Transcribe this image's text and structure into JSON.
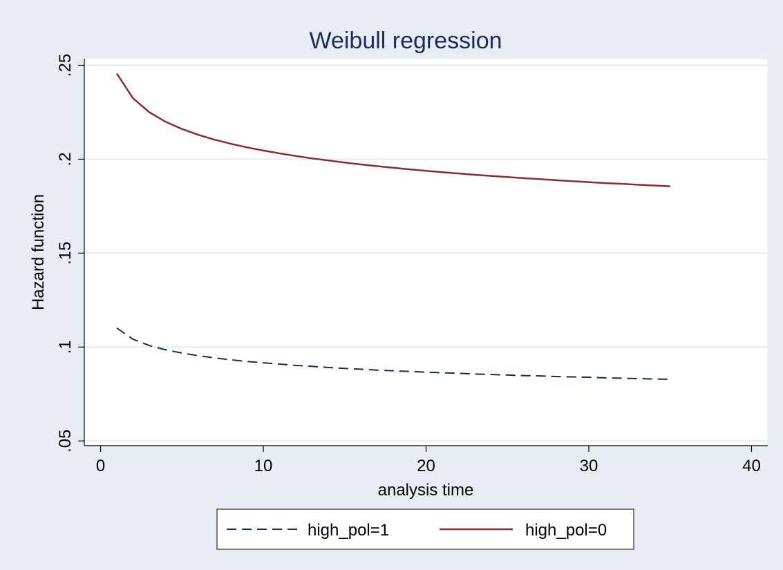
{
  "chart_data": {
    "type": "line",
    "title": "Weibull regression",
    "xlabel": "analysis time",
    "ylabel": "Hazard function",
    "xlim": [
      -1,
      41
    ],
    "ylim": [
      0.0475,
      0.2535
    ],
    "xticks": [
      0,
      10,
      20,
      30,
      40
    ],
    "xtick_labels": [
      "0",
      "10",
      "20",
      "30",
      "40"
    ],
    "yticks": [
      0.05,
      0.1,
      0.15,
      0.2,
      0.25
    ],
    "ytick_labels": [
      ".05",
      ".1",
      ".15",
      ".2",
      ".25"
    ],
    "grid": "horizontal",
    "legend_position": "bottom",
    "colors": {
      "background": "#e8edf3",
      "plot_background": "#ffffff",
      "grid": "#e6ebf0",
      "title": "#1c2c59",
      "text": "#000000",
      "series_1": "#1a2b4c",
      "series_0": "#8b2c2c"
    },
    "x": [
      1,
      2,
      3,
      4,
      5,
      6,
      7,
      8,
      9,
      10,
      11,
      12,
      13,
      14,
      15,
      16,
      17,
      18,
      19,
      20,
      21,
      22,
      23,
      24,
      25,
      26,
      27,
      28,
      29,
      30,
      31,
      32,
      33,
      34,
      35
    ],
    "series": [
      {
        "name": "high_pol=1",
        "style": "dashed",
        "values": [
          0.1101,
          0.1041,
          0.1008,
          0.0985,
          0.0968,
          0.0954,
          0.0942,
          0.0932,
          0.0923,
          0.0916,
          0.0909,
          0.0902,
          0.0897,
          0.0891,
          0.0886,
          0.0882,
          0.0877,
          0.0873,
          0.087,
          0.0866,
          0.0863,
          0.086,
          0.0856,
          0.0854,
          0.0851,
          0.0848,
          0.0846,
          0.0843,
          0.0841,
          0.0839,
          0.0836,
          0.0834,
          0.0832,
          0.083,
          0.0828
        ]
      },
      {
        "name": "high_pol=0",
        "style": "solid",
        "values": [
          0.2456,
          0.2324,
          0.225,
          0.2199,
          0.2161,
          0.213,
          0.2104,
          0.2082,
          0.2063,
          0.2046,
          0.2031,
          0.2017,
          0.2004,
          0.1993,
          0.1982,
          0.1972,
          0.1963,
          0.1954,
          0.1946,
          0.1938,
          0.1931,
          0.1924,
          0.1917,
          0.1911,
          0.1905,
          0.1899,
          0.1894,
          0.1888,
          0.1883,
          0.1878,
          0.1873,
          0.1869,
          0.1864,
          0.186,
          0.1856
        ]
      }
    ]
  }
}
